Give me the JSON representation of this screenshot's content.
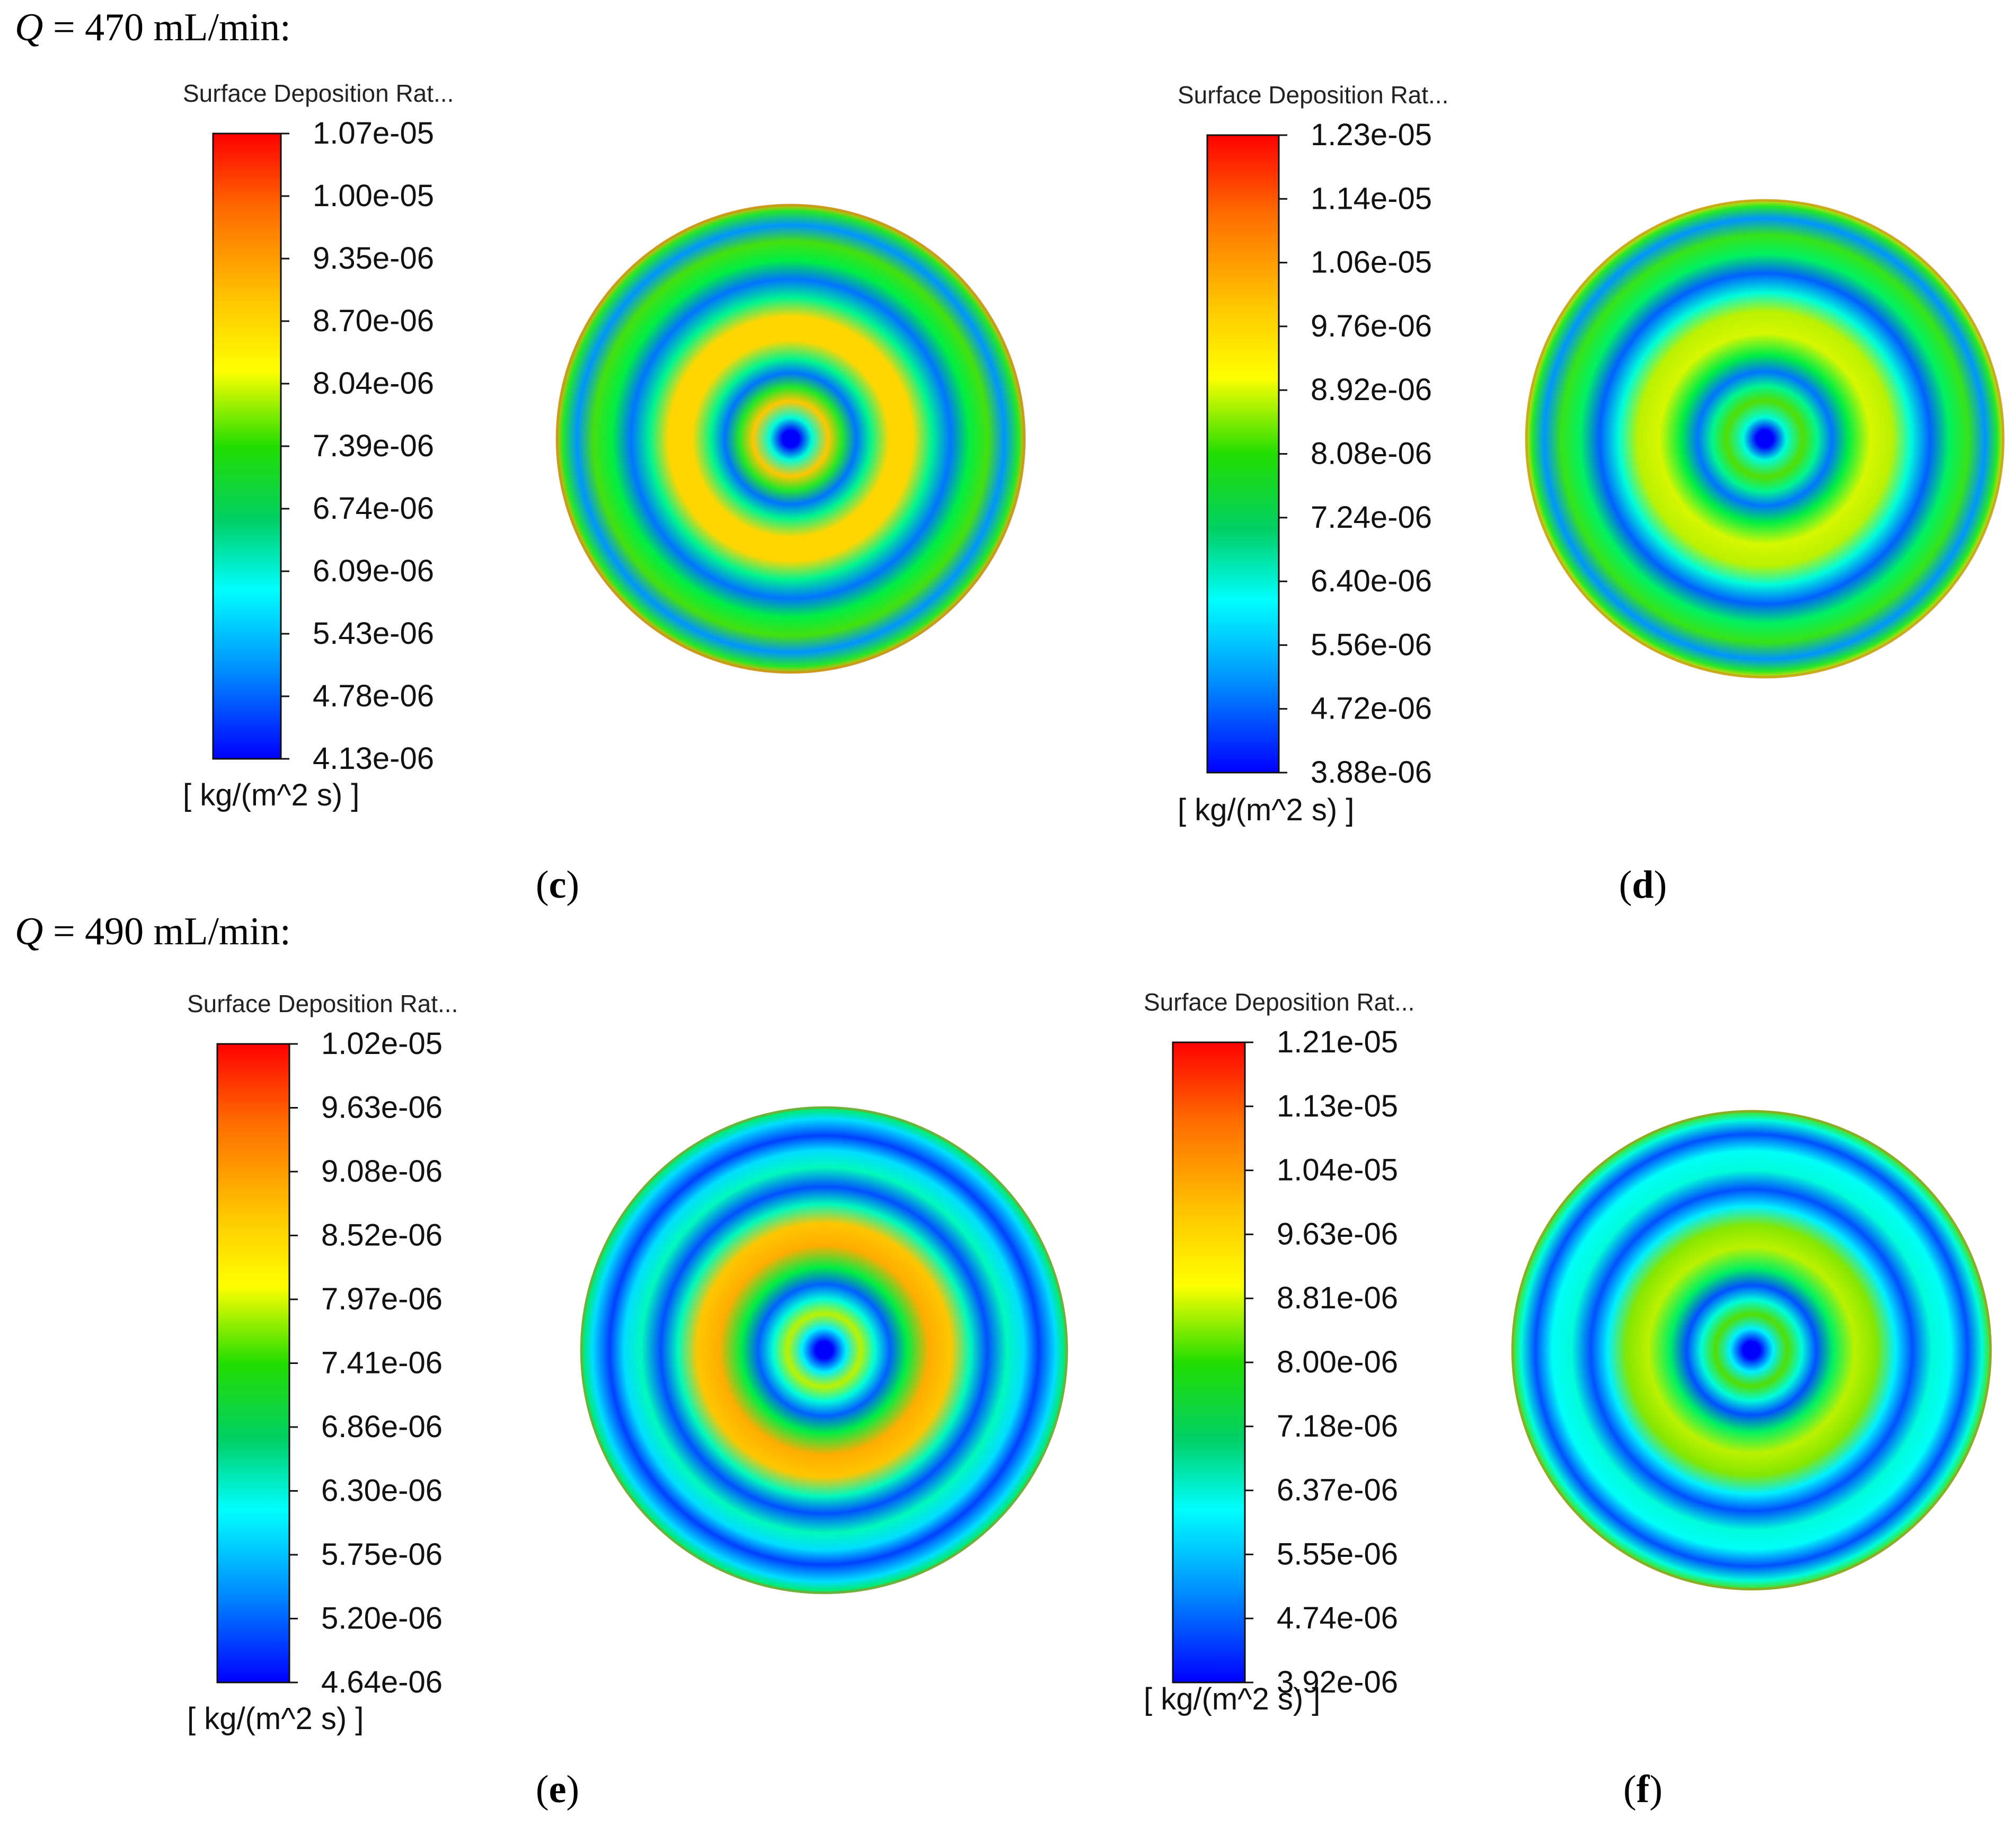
{
  "sections": [
    {
      "var": "Q",
      "text": " = 470 mL/min:"
    },
    {
      "var": "Q",
      "text": " = 490 mL/min:"
    }
  ],
  "panels": [
    {
      "caption": "c",
      "legend": {
        "title": "Surface Deposition Rat...",
        "unit": "[ kg/(m^2 s) ]",
        "labels": [
          "1.07e-05",
          "1.00e-05",
          "9.35e-06",
          "8.70e-06",
          "8.04e-06",
          "7.39e-06",
          "6.74e-06",
          "6.09e-06",
          "5.43e-06",
          "4.78e-06",
          "4.13e-06"
        ]
      },
      "disk": {
        "rings": [
          [
            0,
            0.0
          ],
          [
            0.035,
            0.0
          ],
          [
            0.09,
            0.4
          ],
          [
            0.16,
            0.82
          ],
          [
            0.22,
            0.55
          ],
          [
            0.28,
            0.15
          ],
          [
            0.34,
            0.45
          ],
          [
            0.42,
            0.8
          ],
          [
            0.52,
            0.8
          ],
          [
            0.6,
            0.45
          ],
          [
            0.68,
            0.15
          ],
          [
            0.76,
            0.5
          ],
          [
            0.84,
            0.6
          ],
          [
            0.91,
            0.2
          ],
          [
            0.97,
            0.55
          ],
          [
            1,
            0.85
          ]
        ]
      }
    },
    {
      "caption": "d",
      "legend": {
        "title": "Surface Deposition Rat...",
        "unit": "[ kg/(m^2 s) ]",
        "labels": [
          "1.23e-05",
          "1.14e-05",
          "1.06e-05",
          "9.76e-06",
          "8.92e-06",
          "8.08e-06",
          "7.24e-06",
          "6.40e-06",
          "5.56e-06",
          "4.72e-06",
          "3.88e-06"
        ]
      },
      "disk": {
        "rings": [
          [
            0,
            0.0
          ],
          [
            0.035,
            0.0
          ],
          [
            0.09,
            0.4
          ],
          [
            0.16,
            0.62
          ],
          [
            0.22,
            0.45
          ],
          [
            0.28,
            0.15
          ],
          [
            0.35,
            0.5
          ],
          [
            0.44,
            0.72
          ],
          [
            0.53,
            0.7
          ],
          [
            0.61,
            0.4
          ],
          [
            0.69,
            0.12
          ],
          [
            0.77,
            0.48
          ],
          [
            0.85,
            0.58
          ],
          [
            0.92,
            0.2
          ],
          [
            0.97,
            0.55
          ],
          [
            1,
            0.8
          ]
        ]
      }
    },
    {
      "caption": "e",
      "legend": {
        "title": "Surface Deposition Rat...",
        "unit": "[ kg/(m^2 s) ]",
        "labels": [
          "1.02e-05",
          "9.63e-06",
          "9.08e-06",
          "8.52e-06",
          "7.97e-06",
          "7.41e-06",
          "6.86e-06",
          "6.30e-06",
          "5.75e-06",
          "5.20e-06",
          "4.64e-06"
        ]
      },
      "disk": {
        "rings": [
          [
            0,
            0.0
          ],
          [
            0.035,
            0.0
          ],
          [
            0.09,
            0.35
          ],
          [
            0.15,
            0.7
          ],
          [
            0.21,
            0.4
          ],
          [
            0.27,
            0.12
          ],
          [
            0.34,
            0.5
          ],
          [
            0.43,
            0.85
          ],
          [
            0.52,
            0.82
          ],
          [
            0.6,
            0.42
          ],
          [
            0.67,
            0.1
          ],
          [
            0.75,
            0.42
          ],
          [
            0.82,
            0.32
          ],
          [
            0.88,
            0.08
          ],
          [
            0.95,
            0.32
          ],
          [
            1,
            0.5
          ]
        ]
      }
    },
    {
      "caption": "f",
      "legend": {
        "title": "Surface Deposition Rat...",
        "unit": "[ kg/(m^2 s) ]",
        "labels": [
          "1.21e-05",
          "1.13e-05",
          "1.04e-05",
          "9.63e-06",
          "8.81e-06",
          "8.00e-06",
          "7.18e-06",
          "6.37e-06",
          "5.55e-06",
          "4.74e-06",
          "3.92e-06"
        ]
      },
      "disk": {
        "rings": [
          [
            0,
            0.0
          ],
          [
            0.035,
            0.0
          ],
          [
            0.09,
            0.35
          ],
          [
            0.15,
            0.62
          ],
          [
            0.21,
            0.4
          ],
          [
            0.27,
            0.1
          ],
          [
            0.34,
            0.48
          ],
          [
            0.43,
            0.7
          ],
          [
            0.52,
            0.66
          ],
          [
            0.6,
            0.35
          ],
          [
            0.67,
            0.1
          ],
          [
            0.75,
            0.4
          ],
          [
            0.83,
            0.38
          ],
          [
            0.9,
            0.1
          ],
          [
            0.96,
            0.4
          ],
          [
            1,
            0.62
          ]
        ]
      }
    }
  ]
}
